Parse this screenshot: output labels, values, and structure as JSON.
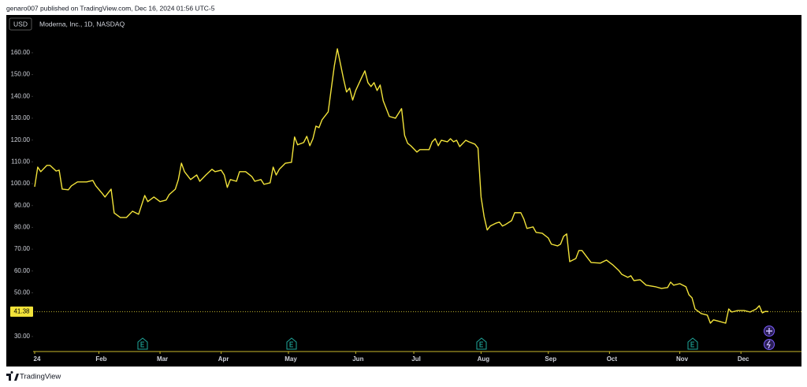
{
  "header": {
    "publisher": "genaro007 published on TradingView.com, Dec 16, 2024 01:56 UTC-5"
  },
  "footer": {
    "brand": "TradingView"
  },
  "chart_data": {
    "type": "line",
    "title": "Moderna, Inc., 1D, NASDAQ",
    "currency": "USD",
    "color": "#f2e33a",
    "last_value": 41.38,
    "x": [
      0,
      1,
      2,
      4,
      5,
      7,
      8,
      9,
      11,
      12,
      14,
      17,
      19,
      20,
      22,
      23,
      25,
      26,
      28,
      30,
      32,
      34,
      36,
      37,
      39,
      41,
      43,
      44,
      46,
      47,
      48,
      49,
      51,
      53,
      54,
      56,
      58,
      59,
      61,
      62,
      63,
      64,
      66,
      67,
      69,
      71,
      72,
      74,
      75,
      77,
      78,
      79,
      80,
      82,
      84,
      85,
      86,
      88,
      89,
      90,
      91,
      92,
      93,
      94,
      96,
      97,
      98,
      99,
      101,
      102,
      103,
      104,
      105,
      107,
      108,
      109,
      110,
      111,
      112,
      113,
      114,
      115,
      116,
      118,
      119,
      120,
      121,
      122,
      123,
      125,
      126,
      128,
      129,
      130,
      131,
      132,
      133,
      135,
      136,
      137,
      138,
      139,
      141,
      142,
      144,
      145,
      146,
      147,
      148,
      149,
      151,
      152,
      153,
      154,
      156,
      157,
      159,
      160,
      161,
      163,
      164,
      166,
      168,
      169,
      171,
      172,
      173,
      174,
      175,
      177,
      178,
      179,
      181,
      182,
      185,
      186,
      187,
      189,
      191,
      192,
      194,
      195,
      196,
      198,
      200,
      203,
      205,
      207,
      208,
      209,
      211,
      212,
      213,
      214,
      215,
      216,
      218,
      220,
      221,
      222,
      224,
      226,
      227,
      228,
      230,
      232,
      234,
      236,
      237,
      238,
      239,
      240
    ],
    "values": [
      98.6,
      107.6,
      105.5,
      108.4,
      108.4,
      105.8,
      106.2,
      97.5,
      97.2,
      99,
      100.8,
      100.8,
      101.5,
      99,
      95.7,
      93.9,
      97.5,
      86.6,
      84.5,
      84.5,
      87.4,
      86,
      94.6,
      91.8,
      93.9,
      91.8,
      92.5,
      95,
      97.5,
      101.9,
      109.4,
      105.5,
      101.9,
      104,
      101.1,
      104,
      106.6,
      105.5,
      106.2,
      104,
      98.3,
      101.9,
      101.1,
      105.5,
      105.5,
      103.3,
      101.1,
      101.9,
      99.7,
      100.4,
      107.6,
      104,
      106.6,
      109.4,
      109.8,
      121.4,
      117.8,
      118.9,
      121.7,
      117.4,
      120.6,
      126.4,
      125.7,
      129.3,
      132.9,
      143.4,
      153.9,
      161.8,
      148.1,
      142,
      143.8,
      138.3,
      142.7,
      148.8,
      151.7,
      146.3,
      144.5,
      146.3,
      142.7,
      145.2,
      138,
      134.4,
      130.8,
      130,
      132.2,
      134.4,
      122.1,
      118.5,
      117.4,
      114.5,
      115.6,
      115.6,
      115.6,
      119.2,
      120.6,
      117.4,
      119.9,
      119.2,
      120.6,
      119.2,
      119.9,
      117,
      119.9,
      119.2,
      118.1,
      116.3,
      93.9,
      84.9,
      78.8,
      80.6,
      82,
      82.4,
      80.6,
      81.3,
      83.1,
      86.7,
      86.7,
      83.8,
      79.5,
      80.2,
      77.7,
      77.3,
      75.1,
      72.3,
      71.5,
      72.3,
      75.9,
      77,
      64.3,
      65.7,
      69.4,
      69.4,
      65.7,
      63.9,
      63.6,
      64.3,
      65,
      62.9,
      60.3,
      58.5,
      57.1,
      57.8,
      55.6,
      56,
      53.5,
      52.8,
      52,
      52.4,
      54.9,
      53.5,
      54.2,
      53.5,
      52.8,
      49.1,
      47.7,
      42.6,
      40.5,
      39.8,
      36.1,
      37.6,
      36.9,
      36.1,
      42.6,
      41.2,
      41.9,
      41.9,
      41.2,
      42.6,
      44.1,
      40.8,
      41.5,
      41.38
    ],
    "xlim": [
      0,
      250.8
    ],
    "xticks": [
      {
        "value": 0,
        "label": "24"
      },
      {
        "value": 21,
        "label": "Feb"
      },
      {
        "value": 41,
        "label": "Mar"
      },
      {
        "value": 61,
        "label": "Apr"
      },
      {
        "value": 83,
        "label": "May"
      },
      {
        "value": 105,
        "label": "Jun"
      },
      {
        "value": 124,
        "label": "Jul"
      },
      {
        "value": 146,
        "label": "Aug"
      },
      {
        "value": 168,
        "label": "Sep"
      },
      {
        "value": 188,
        "label": "Oct"
      },
      {
        "value": 211,
        "label": "Nov"
      },
      {
        "value": 231,
        "label": "Dec"
      }
    ],
    "ylim": [
      23.1,
      177.3
    ],
    "yticks": [
      {
        "value": 30,
        "label": "30.00"
      },
      {
        "value": 50,
        "label": "50.00"
      },
      {
        "value": 60,
        "label": "60.00"
      },
      {
        "value": 70,
        "label": "70.00"
      },
      {
        "value": 80,
        "label": "80.00"
      },
      {
        "value": 90,
        "label": "90.00"
      },
      {
        "value": 100,
        "label": "100.00"
      },
      {
        "value": 110,
        "label": "110.00"
      },
      {
        "value": 120,
        "label": "120.00"
      },
      {
        "value": 130,
        "label": "130.00"
      },
      {
        "value": 140,
        "label": "140.00"
      },
      {
        "value": 150,
        "label": "150.00"
      },
      {
        "value": 160,
        "label": "160.00"
      }
    ]
  }
}
